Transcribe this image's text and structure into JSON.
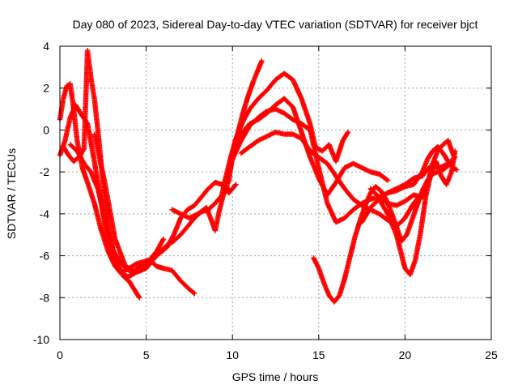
{
  "chart_data": {
    "type": "scatter",
    "title": "Day 080 of 2023, Sidereal Day-to-day VTEC variation (SDTVAR) for receiver bjct",
    "xlabel": "GPS time / hours",
    "ylabel": "SDTVAR / TECUs",
    "xlim": [
      0,
      25
    ],
    "ylim": [
      -10,
      4
    ],
    "xticks": [
      "0",
      "5",
      "10",
      "15",
      "20",
      "25"
    ],
    "yticks": [
      "-10",
      "-8",
      "-6",
      "-4",
      "-2",
      "0",
      "2",
      "4"
    ],
    "grid": true,
    "marker": "+",
    "color": "#ff0000",
    "series": [
      {
        "x": [
          0.0,
          0.3,
          0.6,
          0.9,
          1.2,
          1.6,
          2.0,
          2.4,
          2.8,
          3.2,
          3.6,
          4.0,
          4.4,
          4.8,
          5.2,
          5.6,
          6.0,
          6.5,
          7.0,
          7.5,
          7.8
        ],
        "y": [
          -1.2,
          -0.5,
          0.6,
          1.2,
          0.8,
          0.3,
          -1.5,
          -3.5,
          -5.5,
          -6.3,
          -6.8,
          -6.6,
          -6.4,
          -6.3,
          -6.2,
          -6.5,
          -6.6,
          -6.7,
          -7.2,
          -7.6,
          -7.8
        ]
      },
      {
        "x": [
          0.0,
          0.2,
          0.4,
          0.6,
          0.8,
          1.0,
          1.3,
          1.6,
          2.0,
          2.4,
          2.8,
          3.2,
          3.6,
          4.0,
          4.4,
          4.8,
          5.2,
          5.6,
          6.0
        ],
        "y": [
          0.5,
          1.5,
          2.1,
          2.2,
          1.0,
          -0.5,
          -1.8,
          -2.5,
          -3.5,
          -4.8,
          -5.8,
          -6.5,
          -6.9,
          -7.0,
          -6.8,
          -6.5,
          -6.2,
          -5.8,
          -5.2
        ]
      },
      {
        "x": [
          0.2,
          0.5,
          0.8,
          1.1,
          1.4,
          1.6,
          1.8,
          2.0,
          2.2,
          2.5,
          2.8,
          3.1,
          3.4,
          3.7,
          4.0,
          4.3,
          4.6
        ],
        "y": [
          -0.8,
          -1.2,
          -1.5,
          -1.3,
          -0.9,
          3.8,
          2.5,
          1.5,
          0.0,
          -2.5,
          -4.5,
          -5.8,
          -6.5,
          -7.0,
          -7.2,
          -7.6,
          -8.0
        ]
      },
      {
        "x": [
          0.6,
          1.0,
          1.4,
          1.8,
          2.2,
          2.6,
          3.0,
          3.4,
          3.8,
          4.2,
          4.6,
          5.0,
          5.4,
          5.8,
          6.2,
          6.6,
          7.0,
          7.4,
          7.8,
          8.2,
          8.6,
          9.0,
          9.4,
          9.8
        ],
        "y": [
          -0.7,
          -1.0,
          -1.6,
          -2.0,
          -2.8,
          -4.2,
          -5.6,
          -6.2,
          -6.6,
          -6.8,
          -6.5,
          -6.3,
          -6.1,
          -5.8,
          -5.5,
          -5.3,
          -5.0,
          -4.6,
          -4.2,
          -3.9,
          -3.8,
          -3.5,
          -3.1,
          -2.8
        ]
      },
      {
        "x": [
          2.0,
          2.6,
          3.2,
          3.8,
          4.4,
          5.0,
          5.6,
          6.2,
          6.6,
          7.0,
          7.4,
          7.8,
          8.2,
          8.6,
          9.0,
          9.4,
          9.8,
          10.2
        ],
        "y": [
          -0.2,
          -2.5,
          -5.2,
          -6.5,
          -6.8,
          -6.6,
          -6.0,
          -5.6,
          -5.0,
          -4.2,
          -3.8,
          -3.6,
          -3.2,
          -2.8,
          -2.5,
          -2.6,
          -3.0,
          -2.6
        ]
      },
      {
        "x": [
          6.5,
          7.0,
          7.5,
          8.0,
          8.5,
          9.0,
          9.2,
          9.5,
          9.8,
          10.0,
          10.3,
          10.6,
          10.9,
          11.2,
          11.5,
          11.7
        ],
        "y": [
          -3.8,
          -4.0,
          -4.2,
          -4.0,
          -3.7,
          -4.8,
          -4.0,
          -3.0,
          -2.4,
          -1.2,
          -0.2,
          0.8,
          1.6,
          2.3,
          2.9,
          3.3
        ]
      },
      {
        "x": [
          9.3,
          9.6,
          9.9,
          10.2,
          10.6,
          11.0,
          11.5,
          12.0,
          12.5,
          13.0,
          13.5,
          14.0,
          14.5,
          14.8,
          15.2,
          15.6,
          16.0,
          16.4,
          16.7
        ],
        "y": [
          -3.4,
          -2.3,
          -1.3,
          -0.4,
          0.4,
          1.0,
          1.5,
          1.9,
          2.4,
          2.7,
          2.4,
          1.5,
          0.3,
          -0.8,
          -1.0,
          -0.7,
          -1.5,
          -0.5,
          -0.1
        ]
      },
      {
        "x": [
          9.5,
          10.0,
          10.5,
          11.0,
          11.5,
          12.0,
          12.5,
          13.0,
          13.5,
          14.0,
          14.5,
          15.0,
          15.5,
          16.0,
          16.5,
          17.0,
          17.5,
          18.0,
          18.5,
          19.0
        ],
        "y": [
          -2.8,
          -1.3,
          -0.2,
          0.3,
          0.5,
          0.8,
          1.2,
          1.5,
          1.1,
          -0.1,
          -1.3,
          -2.3,
          -3.1,
          -2.5,
          -1.8,
          -1.6,
          -1.8,
          -2.0,
          -2.1,
          -2.4
        ]
      },
      {
        "x": [
          9.6,
          10.0,
          10.5,
          11.0,
          11.5,
          12.0,
          12.5,
          13.0,
          13.5,
          14.0,
          14.5,
          15.0,
          15.5,
          16.0,
          16.5,
          17.0,
          17.5,
          18.0,
          18.5,
          19.0,
          19.5,
          20.0,
          20.5,
          21.0,
          21.5,
          22.0,
          22.5,
          22.9
        ],
        "y": [
          -2.6,
          -1.4,
          -0.5,
          0.2,
          0.6,
          0.9,
          1.0,
          0.8,
          0.5,
          0.3,
          0.0,
          -1.8,
          -3.5,
          -4.4,
          -4.2,
          -3.8,
          -3.5,
          -3.3,
          -3.2,
          -3.0,
          -2.8,
          -2.6,
          -2.3,
          -2.2,
          -1.7,
          -1.8,
          -1.6,
          -1.3
        ]
      },
      {
        "x": [
          10.5,
          11.0,
          11.5,
          12.0,
          12.5,
          13.0,
          13.5,
          14.0,
          14.5,
          15.0,
          15.5,
          16.0,
          16.5,
          17.0,
          17.5,
          18.0,
          18.5,
          19.0,
          19.5,
          20.0,
          20.5,
          21.0
        ],
        "y": [
          -1.1,
          -0.8,
          -0.5,
          -0.3,
          -0.1,
          -0.2,
          -0.2,
          -0.4,
          -1.0,
          -1.3,
          -1.6,
          -2.2,
          -2.8,
          -3.3,
          -3.6,
          -3.8,
          -4.0,
          -4.3,
          -4.6,
          -4.2,
          -3.5,
          -3.0
        ]
      },
      {
        "x": [
          14.7,
          15.0,
          15.3,
          15.6,
          15.9,
          16.2,
          16.5,
          16.8,
          17.1,
          17.4,
          17.7,
          18.0,
          18.3,
          18.6,
          18.9,
          19.2,
          19.5,
          19.8,
          20.1,
          20.4,
          20.7,
          21.0,
          21.3,
          21.6,
          21.9,
          22.2,
          22.5,
          22.8
        ],
        "y": [
          -6.1,
          -6.6,
          -7.3,
          -7.9,
          -8.2,
          -7.9,
          -7.1,
          -6.1,
          -5.1,
          -4.3,
          -3.6,
          -3.0,
          -2.7,
          -2.9,
          -3.3,
          -3.9,
          -4.6,
          -5.3,
          -5.0,
          -4.3,
          -3.6,
          -2.9,
          -2.4,
          -2.1,
          -2.0,
          -1.9,
          -1.7,
          -1.5
        ]
      },
      {
        "x": [
          17.5,
          18.0,
          18.5,
          19.0,
          19.5,
          20.0,
          20.3,
          20.6,
          20.9,
          21.2,
          21.5,
          21.8,
          22.1,
          22.4,
          22.7,
          22.9
        ],
        "y": [
          -4.4,
          -3.7,
          -3.3,
          -4.0,
          -5.0,
          -6.6,
          -6.9,
          -6.2,
          -4.9,
          -3.2,
          -2.1,
          -1.5,
          -2.2,
          -2.6,
          -2.0,
          -1.0
        ]
      },
      {
        "x": [
          18.0,
          18.5,
          19.0,
          19.5,
          20.0,
          20.5,
          21.0,
          21.3,
          21.6,
          21.9,
          22.2,
          22.5,
          22.8
        ],
        "y": [
          -2.8,
          -3.2,
          -3.5,
          -3.6,
          -3.4,
          -3.1,
          -3.2,
          -2.6,
          -1.6,
          -1.0,
          -0.7,
          -0.5,
          -1.2
        ]
      },
      {
        "x": [
          19.0,
          19.5,
          20.0,
          20.5,
          21.0,
          21.3,
          21.6,
          21.9,
          22.2,
          22.5,
          22.8,
          23.0
        ],
        "y": [
          -3.0,
          -2.9,
          -2.7,
          -2.6,
          -2.0,
          -1.4,
          -1.0,
          -0.8,
          -1.1,
          -1.5,
          -1.8,
          -1.9
        ]
      }
    ]
  }
}
